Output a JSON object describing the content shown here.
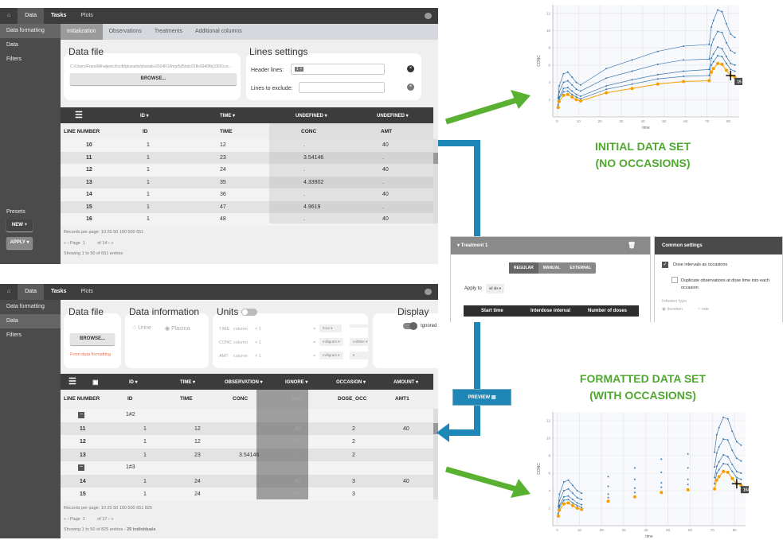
{
  "nav": {
    "home_icon": "home-icon",
    "data": "Data",
    "tasks": "Tasks",
    "plots": "Plots",
    "chat_icon": "chat-icon"
  },
  "sidebar": {
    "data_formatting": "Data formatting",
    "data": "Data",
    "filters": "Filters",
    "presets": "Presets",
    "new": "NEW +",
    "apply": "APPLY ▾"
  },
  "top_app": {
    "tabs": [
      "Initialization",
      "Observations",
      "Treatments",
      "Additional columns"
    ],
    "data_file": {
      "title": "Data file",
      "path": "C:/Users/FranoMihaljevic/lixoft/pkanalix/pkanalix2024R1/tmp/6d5bdc918c6940ffa10591ce...",
      "browse": "BROWSE..."
    },
    "lines_settings": {
      "title": "Lines settings",
      "header_lines_label": "Header lines:",
      "header_lines_value": "1 ×",
      "lines_to_exclude_label": "Lines to exclude:"
    },
    "column_types": [
      "ID ▾",
      "TIME ▾",
      "UNDEFINED ▾",
      "UNDEFINED ▾"
    ],
    "headers": [
      "LINE NUMBER",
      "ID",
      "TIME",
      "CONC",
      "AMT"
    ],
    "rows": [
      [
        "10",
        "1",
        "12",
        ".",
        "40"
      ],
      [
        "11",
        "1",
        "23",
        "3.54146",
        "."
      ],
      [
        "12",
        "1",
        "24",
        ".",
        "40"
      ],
      [
        "13",
        "1",
        "35",
        "4.33902",
        "."
      ],
      [
        "14",
        "1",
        "36",
        ".",
        "40"
      ],
      [
        "15",
        "1",
        "47",
        "4.9619",
        "."
      ],
      [
        "16",
        "1",
        "48",
        ".",
        "40"
      ]
    ],
    "records_label": "Records per page:",
    "records_options": "10 25 50 100 500 651",
    "pager": {
      "first": "«",
      "prev": "‹",
      "page_label": "Page",
      "page": "1",
      "of": "of 14",
      "next": "›",
      "last": "»"
    },
    "showing": "Showing 1 to 50 of 651 entries"
  },
  "bottom_app": {
    "data_file": {
      "title": "Data file",
      "browse": "BROWSE...",
      "source": "From data formatting"
    },
    "data_information": {
      "title": "Data information",
      "urine": "Urine",
      "plasma": "Plasma"
    },
    "units": {
      "title": "Units",
      "rows": [
        {
          "name": "TIME",
          "col": "column",
          "x": "× 1",
          "eq": "=",
          "u1": "hour ▾",
          "u2": ""
        },
        {
          "name": "CONC",
          "col": "column",
          "x": "× 1",
          "eq": "=",
          "u1": "milligram ▾",
          "u2": "milliliter ▾"
        },
        {
          "name": "AMT",
          "col": "column",
          "x": "× 1",
          "eq": "=",
          "u1": "milligram ▾",
          "u2": "▾"
        }
      ]
    },
    "display": {
      "title": "Display",
      "ignored": "Ignored"
    },
    "column_types": [
      "ID ▾",
      "TIME ▾",
      "OBSERVATION ▾",
      "IGNORE ▾",
      "OCCASION ▾",
      "AMOUNT ▾"
    ],
    "headers": [
      "LINE NUMBER",
      "ID",
      "TIME",
      "CONC",
      "AMT",
      "DOSE_OCC",
      "AMT1"
    ],
    "rows": [
      {
        "group": "1#2"
      },
      {
        "cells": [
          "11",
          "1",
          "12",
          "",
          "40",
          "2",
          "40"
        ]
      },
      {
        "cells": [
          "12",
          "1",
          "12",
          "",
          "40",
          "2",
          ""
        ]
      },
      {
        "cells": [
          "13",
          "1",
          "23",
          "3.54146",
          ".",
          "2",
          ""
        ]
      },
      {
        "group": "1#3"
      },
      {
        "cells": [
          "14",
          "1",
          "24",
          "",
          "40",
          "3",
          "40"
        ]
      },
      {
        "cells": [
          "15",
          "1",
          "24",
          "",
          "40",
          "3",
          ""
        ]
      }
    ],
    "records_label": "Records per page:",
    "records_options": "10 25 50 100 500 651 825",
    "pager": {
      "first": "«",
      "prev": "‹",
      "page_label": "Page",
      "page": "1",
      "of": "of 17",
      "next": "›",
      "last": "»"
    },
    "showing": "Showing 1 to 50 of 825 entries - ",
    "individuals": "25 individuals"
  },
  "treatment_panel": {
    "title": "▾ Treatment 1",
    "modes": [
      "REGULAR",
      "MANUAL",
      "EXTERNAL"
    ],
    "apply_to": "Apply to",
    "apply_value": "all ids ▾",
    "columns": [
      "Start time",
      "Interdose interval",
      "Number of doses"
    ]
  },
  "common_settings": {
    "title": "Common settings",
    "dose_intervals": "Dose intervals as occasions",
    "dose_intervals_checked": true,
    "duplicate": "Duplicate observations at dose time into each occasion",
    "duplicate_checked": false,
    "infusion_type": "Infusion type",
    "duration": "duration",
    "rate": "rate"
  },
  "preview_button": "PREVIEW",
  "labels": {
    "initial": [
      "INITIAL DATA SET",
      "(NO OCCASIONS)"
    ],
    "formatted": [
      "FORMATTED DATA SET",
      "(WITH OCCASIONS)"
    ]
  },
  "colors": {
    "accent_green": "#4fa82f",
    "connector_blue": "#1e87b8",
    "series_blue": "#3a78b0",
    "highlight_orange": "#f5a000"
  },
  "chart_data": [
    {
      "type": "line",
      "xlabel": "time",
      "ylabel": "CONC",
      "xlim": [
        -2,
        85
      ],
      "ylim": [
        0,
        13
      ],
      "xticks": [
        0,
        10,
        20,
        30,
        40,
        50,
        60,
        70,
        80
      ],
      "yticks": [
        2,
        4,
        6,
        8,
        10,
        12
      ],
      "grid": true,
      "tooltip": "15",
      "occasion_breaks": [],
      "x": [
        0.5,
        1,
        3,
        5,
        7,
        9,
        11,
        23,
        35,
        47,
        59,
        71,
        72,
        73,
        75,
        77,
        79,
        81,
        83
      ],
      "series": [
        {
          "highlight": false,
          "values": [
            1.3,
            2.1,
            2.9,
            3.0,
            2.6,
            2.3,
            2.1,
            3.2,
            3.8,
            4.4,
            4.7,
            4.8,
            6.0,
            6.4,
            7.1,
            7.0,
            6.2,
            5.5,
            5.3
          ]
        },
        {
          "highlight": false,
          "values": [
            1.4,
            2.3,
            3.3,
            3.4,
            3.0,
            2.6,
            2.4,
            3.6,
            4.3,
            4.9,
            5.3,
            5.5,
            6.8,
            7.3,
            8.1,
            7.9,
            7.0,
            6.2,
            6.0
          ]
        },
        {
          "highlight": false,
          "values": [
            1.8,
            2.9,
            4.0,
            4.2,
            3.7,
            3.2,
            3.0,
            4.5,
            5.3,
            6.1,
            6.6,
            6.7,
            8.3,
            9.0,
            9.9,
            9.8,
            8.6,
            7.7,
            7.4
          ]
        },
        {
          "highlight": false,
          "values": [
            2.2,
            3.6,
            5.0,
            5.2,
            4.6,
            4.0,
            3.7,
            5.6,
            6.6,
            7.6,
            8.2,
            8.4,
            10.4,
            11.2,
            12.4,
            12.2,
            10.8,
            9.6,
            9.2
          ]
        },
        {
          "highlight": true,
          "values": [
            1.1,
            1.8,
            2.5,
            2.6,
            2.3,
            2.0,
            1.85,
            2.8,
            3.3,
            3.8,
            4.1,
            4.2,
            5.2,
            5.6,
            6.2,
            6.1,
            5.4,
            4.8,
            4.6
          ]
        }
      ]
    },
    {
      "type": "line",
      "xlabel": "time",
      "ylabel": "CONC",
      "xlim": [
        -2,
        85
      ],
      "ylim": [
        0,
        13
      ],
      "xticks": [
        0,
        10,
        20,
        30,
        40,
        50,
        60,
        70,
        80
      ],
      "yticks": [
        2,
        4,
        6,
        8,
        10,
        12
      ],
      "grid": true,
      "tooltip": "15#7",
      "occasion_breaks": [
        12,
        24,
        36,
        48,
        60
      ],
      "x": [
        0.5,
        1,
        3,
        5,
        7,
        9,
        11,
        23,
        35,
        47,
        59,
        71,
        72,
        73,
        75,
        77,
        79,
        81,
        83
      ],
      "series": [
        {
          "highlight": false,
          "values": [
            1.3,
            2.1,
            2.9,
            3.0,
            2.6,
            2.3,
            2.1,
            3.2,
            3.8,
            4.4,
            4.7,
            4.8,
            6.0,
            6.4,
            7.1,
            7.0,
            6.2,
            5.5,
            5.3
          ]
        },
        {
          "highlight": false,
          "values": [
            1.4,
            2.3,
            3.3,
            3.4,
            3.0,
            2.6,
            2.4,
            3.6,
            4.3,
            4.9,
            5.3,
            5.5,
            6.8,
            7.3,
            8.1,
            7.9,
            7.0,
            6.2,
            6.0
          ]
        },
        {
          "highlight": false,
          "values": [
            1.8,
            2.9,
            4.0,
            4.2,
            3.7,
            3.2,
            3.0,
            4.5,
            5.3,
            6.1,
            6.6,
            6.7,
            8.3,
            9.0,
            9.9,
            9.8,
            8.6,
            7.7,
            7.4
          ]
        },
        {
          "highlight": false,
          "values": [
            2.2,
            3.6,
            5.0,
            5.2,
            4.6,
            4.0,
            3.7,
            5.6,
            6.6,
            7.6,
            8.2,
            8.4,
            10.4,
            11.2,
            12.4,
            12.2,
            10.8,
            9.6,
            9.2
          ]
        },
        {
          "highlight": true,
          "values": [
            1.1,
            1.8,
            2.5,
            2.6,
            2.3,
            2.0,
            1.85,
            2.8,
            3.3,
            3.8,
            4.1,
            4.2,
            5.2,
            5.6,
            6.2,
            6.1,
            5.4,
            4.8,
            4.6
          ]
        }
      ]
    }
  ]
}
